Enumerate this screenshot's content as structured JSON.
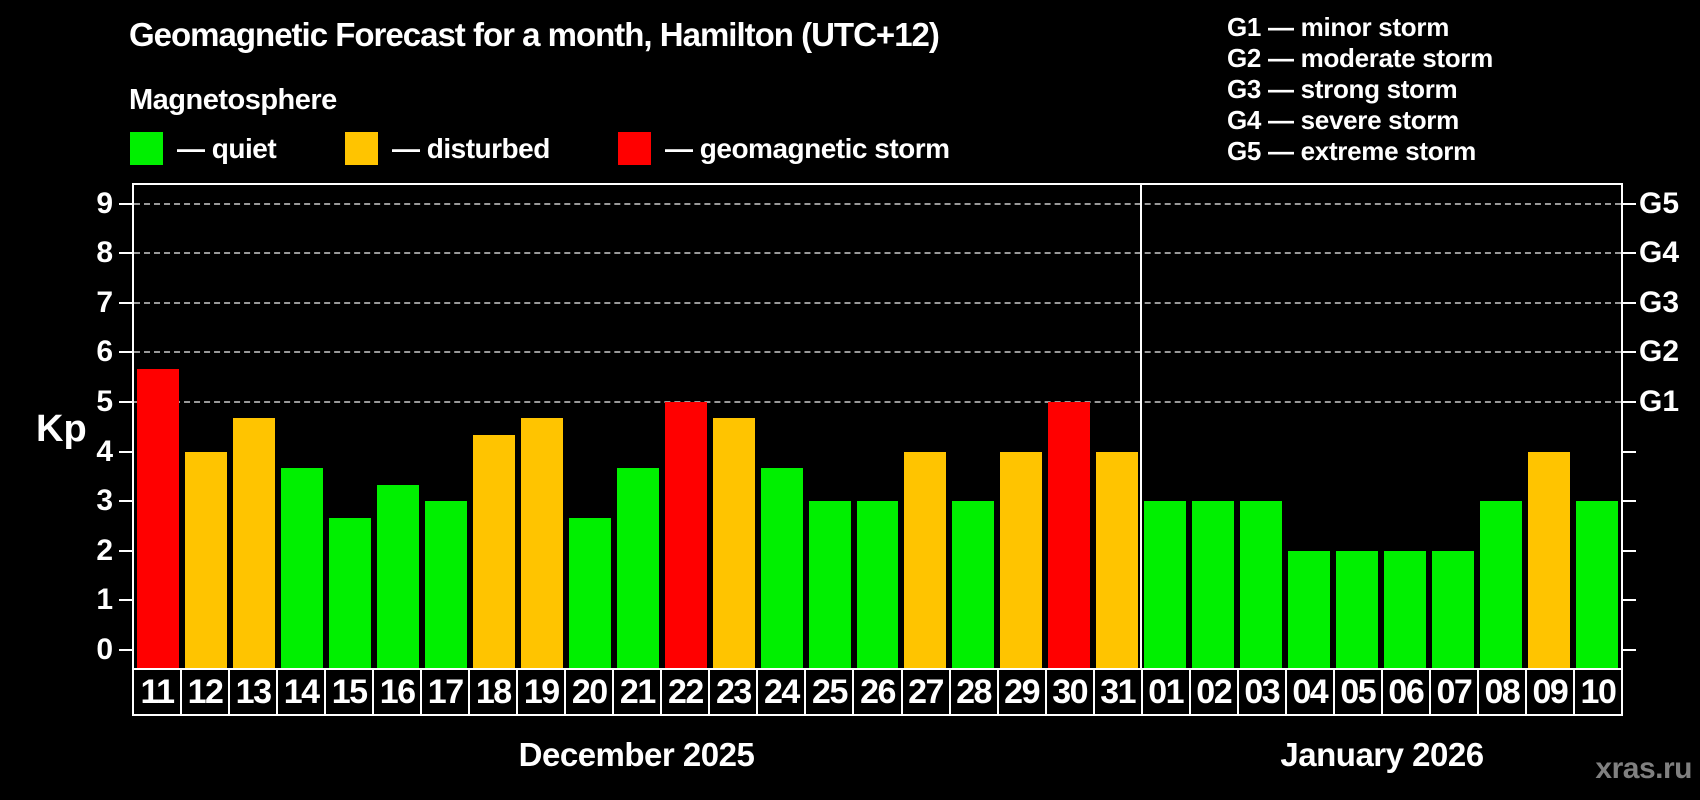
{
  "title": "Geomagnetic Forecast for a month, Hamilton (UTC+12)",
  "subtitle": "Magnetosphere",
  "legend": {
    "items": [
      {
        "key": "quiet",
        "label": "— quiet",
        "color": "#00F000"
      },
      {
        "key": "disturbed",
        "label": "— disturbed",
        "color": "#FFC400"
      },
      {
        "key": "storm",
        "label": "— geomagnetic storm",
        "color": "#FF0000"
      }
    ]
  },
  "g_legend": [
    "G1 — minor storm",
    "G2 — moderate storm",
    "G3 — strong storm",
    "G4 — severe storm",
    "G5 — extreme storm"
  ],
  "axis": {
    "y_label": "Kp",
    "y_tick_labels": [
      "0",
      "1",
      "2",
      "3",
      "4",
      "5",
      "6",
      "7",
      "8",
      "9"
    ],
    "g_ticks": [
      {
        "kp": 5,
        "label": "G1"
      },
      {
        "kp": 6,
        "label": "G2"
      },
      {
        "kp": 7,
        "label": "G3"
      },
      {
        "kp": 8,
        "label": "G4"
      },
      {
        "kp": 9,
        "label": "G5"
      }
    ]
  },
  "months": [
    {
      "label": "December 2025",
      "days": 21
    },
    {
      "label": "January 2026",
      "days": 10
    }
  ],
  "watermark": "xras.ru",
  "colors": {
    "background": "#000000",
    "grid": "#999999",
    "axis": "#FFFFFF",
    "quiet": "#00F000",
    "disturbed": "#FFC400",
    "storm": "#FF0000"
  },
  "chart_data": {
    "type": "bar",
    "title": "Geomagnetic Forecast for a month, Hamilton (UTC+12)",
    "xlabel": "",
    "ylabel": "Kp",
    "ylim": [
      0,
      9
    ],
    "grid": "dashed horizontal lines at Kp 5-9 (G1-G5) only",
    "legend_position": "top-left",
    "gridlines_kp": [
      5,
      6,
      7,
      8,
      9
    ],
    "categories": [
      "11",
      "12",
      "13",
      "14",
      "15",
      "16",
      "17",
      "18",
      "19",
      "20",
      "21",
      "22",
      "23",
      "24",
      "25",
      "26",
      "27",
      "28",
      "29",
      "30",
      "31",
      "01",
      "02",
      "03",
      "04",
      "05",
      "06",
      "07",
      "08",
      "09",
      "10"
    ],
    "values": [
      5.67,
      4.0,
      4.67,
      3.67,
      2.67,
      3.33,
      3.0,
      4.33,
      4.67,
      2.67,
      3.67,
      5.0,
      4.67,
      3.67,
      3.0,
      3.0,
      4.0,
      3.0,
      4.0,
      5.0,
      4.0,
      3.0,
      3.0,
      3.0,
      2.0,
      2.0,
      2.0,
      2.0,
      3.0,
      4.0,
      3.0
    ],
    "statuses": [
      "storm",
      "disturbed",
      "disturbed",
      "quiet",
      "quiet",
      "quiet",
      "quiet",
      "disturbed",
      "disturbed",
      "quiet",
      "quiet",
      "storm",
      "disturbed",
      "quiet",
      "quiet",
      "quiet",
      "disturbed",
      "quiet",
      "disturbed",
      "storm",
      "disturbed",
      "quiet",
      "quiet",
      "quiet",
      "quiet",
      "quiet",
      "quiet",
      "quiet",
      "quiet",
      "disturbed",
      "quiet"
    ],
    "status_colors": {
      "quiet": "#00F000",
      "disturbed": "#FFC400",
      "storm": "#FF0000"
    }
  }
}
